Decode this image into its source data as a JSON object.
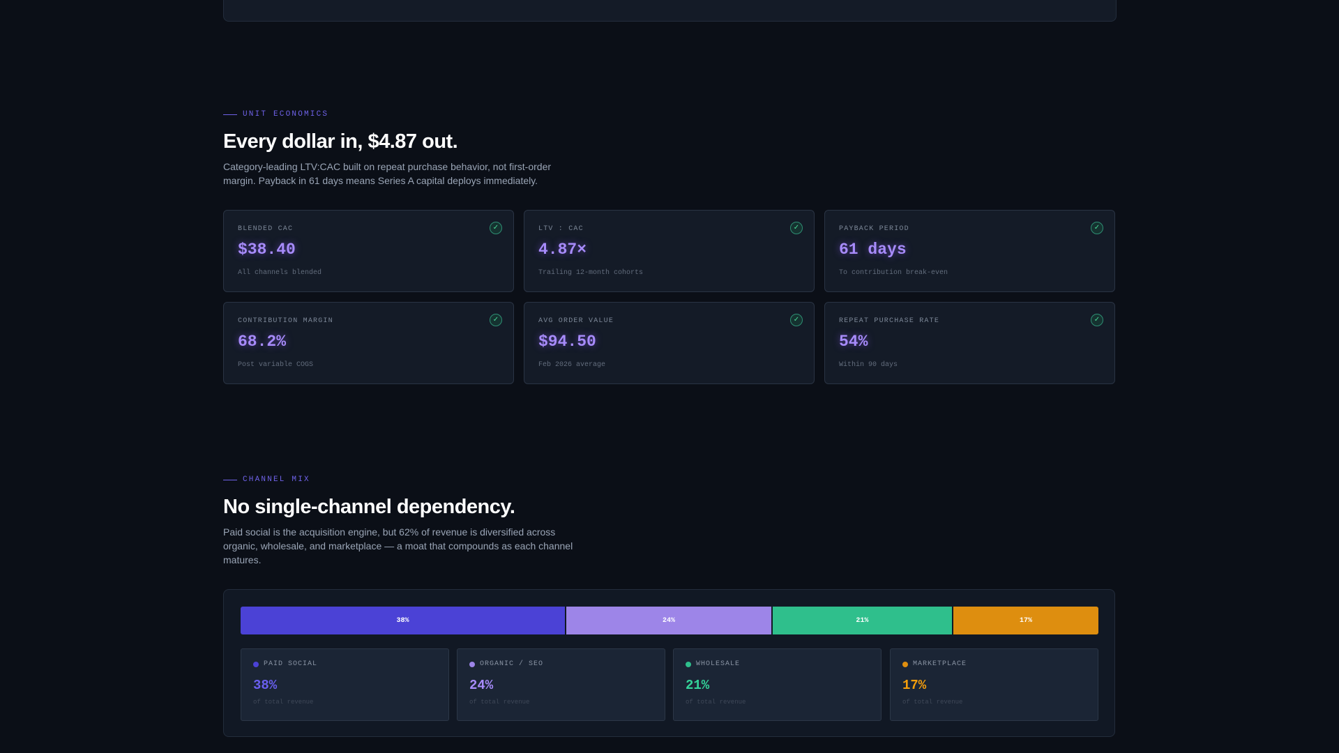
{
  "unit_economics": {
    "eyebrow": "UNIT ECONOMICS",
    "headline": "Every dollar in, $4.87 out.",
    "subtext_line1": "Category-leading LTV:CAC built on repeat purchase behavior, not first-order",
    "subtext_line2": "margin. Payback in 61 days means Series A capital deploys immediately.",
    "metrics": [
      {
        "label": "BLENDED CAC",
        "value": "$38.40",
        "note": "All channels blended"
      },
      {
        "label": "LTV : CAC",
        "value": "4.87×",
        "note": "Trailing 12-month cohorts"
      },
      {
        "label": "PAYBACK PERIOD",
        "value": "61 days",
        "note": "To contribution break-even"
      },
      {
        "label": "CONTRIBUTION MARGIN",
        "value": "68.2%",
        "note": "Post variable COGS"
      },
      {
        "label": "AVG ORDER VALUE",
        "value": "$94.50",
        "note": "Feb 2026 average"
      },
      {
        "label": "REPEAT PURCHASE RATE",
        "value": "54%",
        "note": "Within 90 days"
      }
    ],
    "check_icon": "✓"
  },
  "channel_mix": {
    "eyebrow": "CHANNEL MIX",
    "headline": "No single-channel dependency.",
    "subtext_line1": "Paid social is the acquisition engine, but 62% of revenue is diversified across",
    "subtext_line2": "organic, wholesale, and marketplace — a moat that compounds as each channel",
    "subtext_line3": "matures.",
    "channels": [
      {
        "name": "PAID SOCIAL",
        "share": 38,
        "label": "38%",
        "note": "of total revenue",
        "color": "#4b42d6",
        "text_color": "#6a5ff0"
      },
      {
        "name": "ORGANIC / SEO",
        "share": 24,
        "label": "24%",
        "note": "of total revenue",
        "color": "#9d85e8",
        "text_color": "#a78bfa"
      },
      {
        "name": "WHOLESALE",
        "share": 21,
        "label": "21%",
        "note": "of total revenue",
        "color": "#2fbf8c",
        "text_color": "#34d399"
      },
      {
        "name": "MARKETPLACE",
        "share": 17,
        "label": "17%",
        "note": "of total revenue",
        "color": "#de8e0f",
        "text_color": "#f59e0b"
      }
    ]
  },
  "colors": {
    "background": "#0b0f17",
    "accent": "#6f62e8",
    "metric_value": "#a78bfa",
    "check": "#4ade9a"
  }
}
